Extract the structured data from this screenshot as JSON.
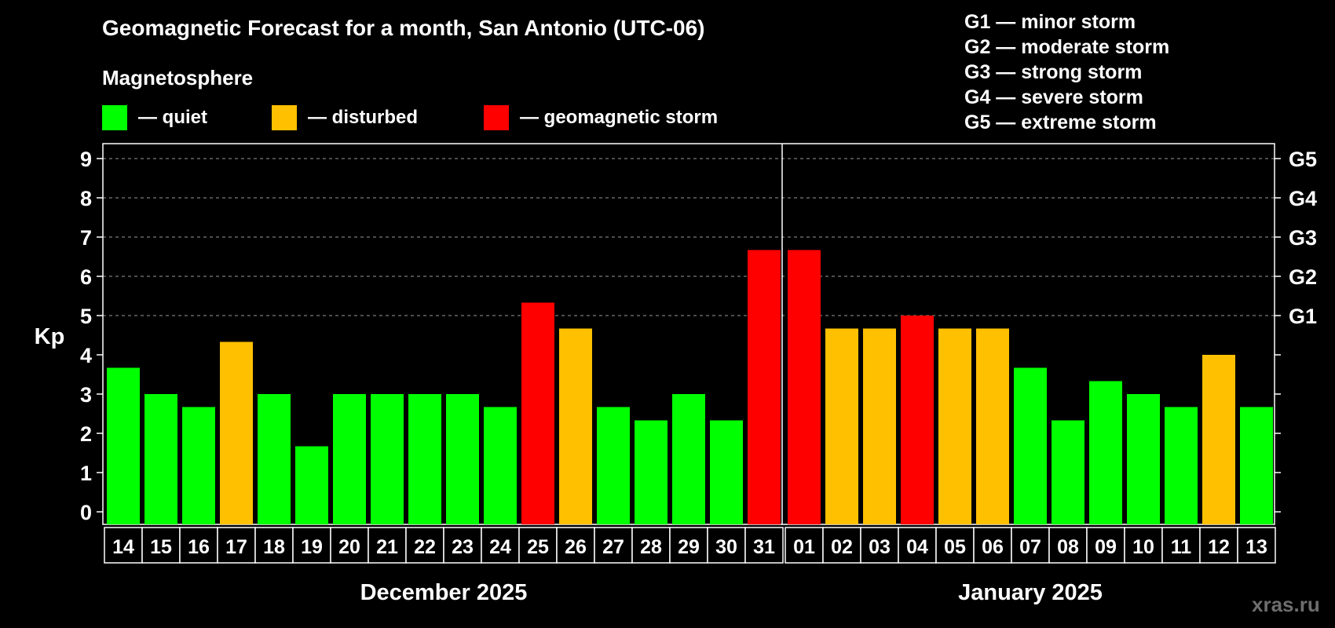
{
  "title": "Geomagnetic Forecast for a month, San Antonio (UTC-06)",
  "magnetosphere_label": "Magnetosphere",
  "legend": [
    {
      "label": "— quiet",
      "color": "#00ff00"
    },
    {
      "label": "— disturbed",
      "color": "#ffc000"
    },
    {
      "label": "— geomagnetic storm",
      "color": "#ff0000"
    }
  ],
  "g_scale": [
    "G1 — minor storm",
    "G2 — moderate storm",
    "G3 — strong storm",
    "G4 — severe storm",
    "G5 — extreme storm"
  ],
  "watermark": "xras.ru",
  "chart_data": {
    "type": "bar",
    "ylabel": "Kp",
    "ylim": [
      0,
      9
    ],
    "yticks": [
      "0",
      "1",
      "2",
      "3",
      "4",
      "5",
      "6",
      "7",
      "8",
      "9"
    ],
    "right_axis_labels": [
      {
        "value": 5,
        "label": "G1"
      },
      {
        "value": 6,
        "label": "G2"
      },
      {
        "value": 7,
        "label": "G3"
      },
      {
        "value": 8,
        "label": "G4"
      },
      {
        "value": 9,
        "label": "G5"
      }
    ],
    "grid": "dashed horizontal at Kp 5-9",
    "categories": [
      "14",
      "15",
      "16",
      "17",
      "18",
      "19",
      "20",
      "21",
      "22",
      "23",
      "24",
      "25",
      "26",
      "27",
      "28",
      "29",
      "30",
      "31",
      "01",
      "02",
      "03",
      "04",
      "05",
      "06",
      "07",
      "08",
      "09",
      "10",
      "11",
      "12",
      "13"
    ],
    "values": [
      3.67,
      3.0,
      2.67,
      4.33,
      3.0,
      1.67,
      3.0,
      3.0,
      3.0,
      3.0,
      2.67,
      5.33,
      4.67,
      2.67,
      2.33,
      3.0,
      2.33,
      6.67,
      6.67,
      4.67,
      4.67,
      5.0,
      4.67,
      4.67,
      3.67,
      2.33,
      3.33,
      3.0,
      2.67,
      4.0,
      2.67
    ],
    "colors": [
      "#00ff00",
      "#00ff00",
      "#00ff00",
      "#ffc000",
      "#00ff00",
      "#00ff00",
      "#00ff00",
      "#00ff00",
      "#00ff00",
      "#00ff00",
      "#00ff00",
      "#ff0000",
      "#ffc000",
      "#00ff00",
      "#00ff00",
      "#00ff00",
      "#00ff00",
      "#ff0000",
      "#ff0000",
      "#ffc000",
      "#ffc000",
      "#ff0000",
      "#ffc000",
      "#ffc000",
      "#00ff00",
      "#00ff00",
      "#00ff00",
      "#00ff00",
      "#00ff00",
      "#ffc000",
      "#00ff00"
    ],
    "month_groups": [
      {
        "label": "December 2025",
        "start": 0,
        "end": 17
      },
      {
        "label": "January 2025",
        "start": 18,
        "end": 30
      }
    ],
    "month_divider_after_index": 17
  }
}
